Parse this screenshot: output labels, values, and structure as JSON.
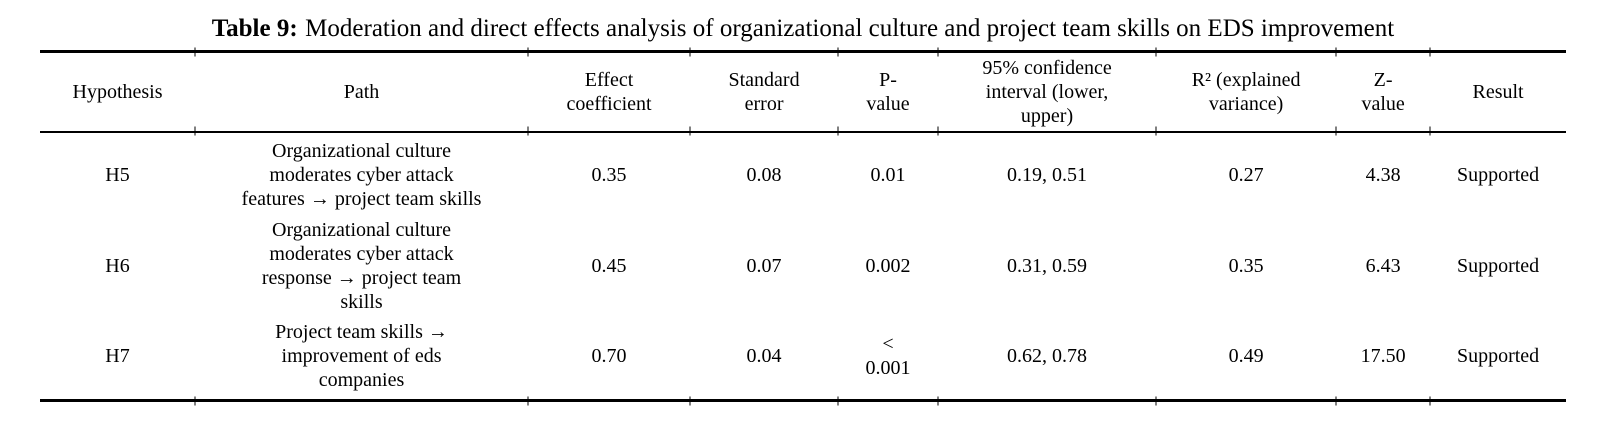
{
  "title": {
    "label": "Table 9:",
    "text": "Moderation and direct effects analysis of organizational culture and project team skills on EDS improvement"
  },
  "table": {
    "columns": [
      "Hypothesis",
      "Path",
      "Effect\ncoefficient",
      "Standard\nerror",
      "P-\nvalue",
      "95% confidence\ninterval (lower,\nupper)",
      "R² (explained\nvariance)",
      "Z-\nvalue",
      "Result"
    ],
    "rows": [
      {
        "hypothesis": "H5",
        "path": "Organizational culture\nmoderates cyber attack\nfeatures → project team skills",
        "effect_coefficient": "0.35",
        "standard_error": "0.08",
        "p_value": "0.01",
        "confidence_interval": "0.19, 0.51",
        "r_squared": "0.27",
        "z_value": "4.38",
        "result": "Supported"
      },
      {
        "hypothesis": "H6",
        "path": "Organizational culture\nmoderates cyber attack\nresponse → project team\nskills",
        "effect_coefficient": "0.45",
        "standard_error": "0.07",
        "p_value": "0.002",
        "confidence_interval": "0.31, 0.59",
        "r_squared": "0.35",
        "z_value": "6.43",
        "result": "Supported"
      },
      {
        "hypothesis": "H7",
        "path": "Project team skills →\nimprovement of eds\ncompanies",
        "effect_coefficient": "0.70",
        "standard_error": "0.04",
        "p_value": "<\n0.001",
        "confidence_interval": "0.62, 0.78",
        "r_squared": "0.49",
        "z_value": "17.50",
        "result": "Supported"
      }
    ]
  },
  "colors": {
    "text": "#000000",
    "background": "#ffffff",
    "rule": "#000000"
  }
}
